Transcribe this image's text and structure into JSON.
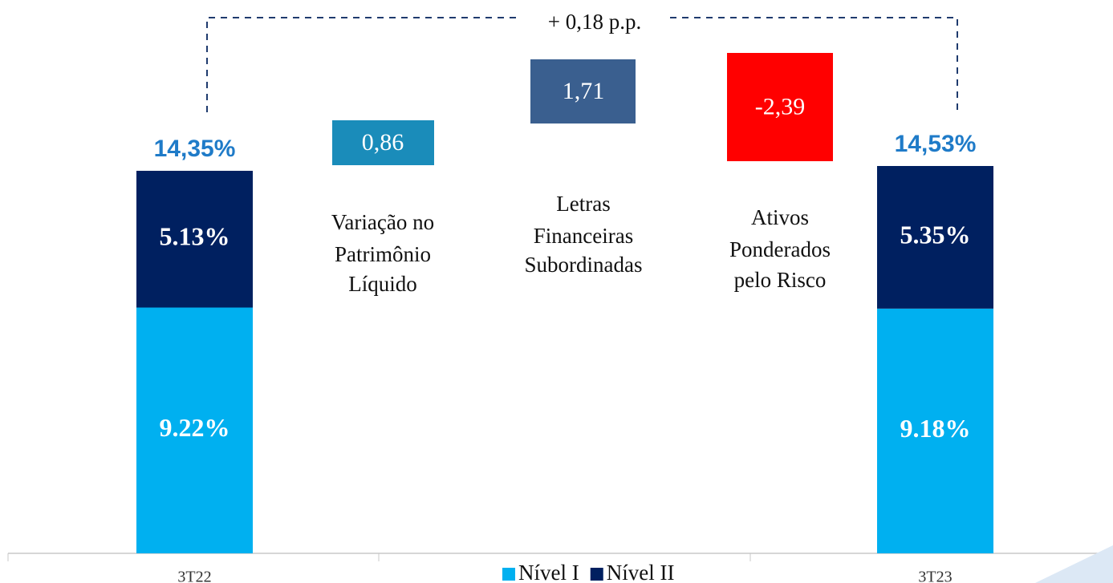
{
  "chart_data": {
    "type": "stacked_bar",
    "categories": [
      "3T22",
      "3T23"
    ],
    "series": [
      {
        "name": "Nível I",
        "color": "#00b0f0",
        "values": [
          9.22,
          9.18
        ],
        "value_labels": [
          "9.22%",
          "9.18%"
        ]
      },
      {
        "name": "Nível II",
        "color": "#002060",
        "values": [
          5.13,
          5.35
        ],
        "value_labels": [
          "5.13%",
          "5.35%"
        ]
      }
    ],
    "totals": [
      14.35,
      14.53
    ],
    "total_labels": [
      "14,35%",
      "14,53%"
    ],
    "total_color": "#1f7bc8",
    "changes": [
      {
        "label_lines": [
          "Variação no",
          "Patrimônio",
          "Líquido"
        ],
        "value": 0.86,
        "value_label": "0,86",
        "color": "#1a8cba"
      },
      {
        "label_lines": [
          "Letras",
          "Financeiras",
          "Subordinadas"
        ],
        "value": 1.71,
        "value_label": "1,71",
        "color": "#3a5f8f"
      },
      {
        "label_lines": [
          "Ativos",
          "Ponderados",
          "pelo Risco"
        ],
        "value": -2.39,
        "value_label": "-2,39",
        "color": "#ff0000"
      }
    ],
    "annotation": "+ 0,18 p.p."
  }
}
